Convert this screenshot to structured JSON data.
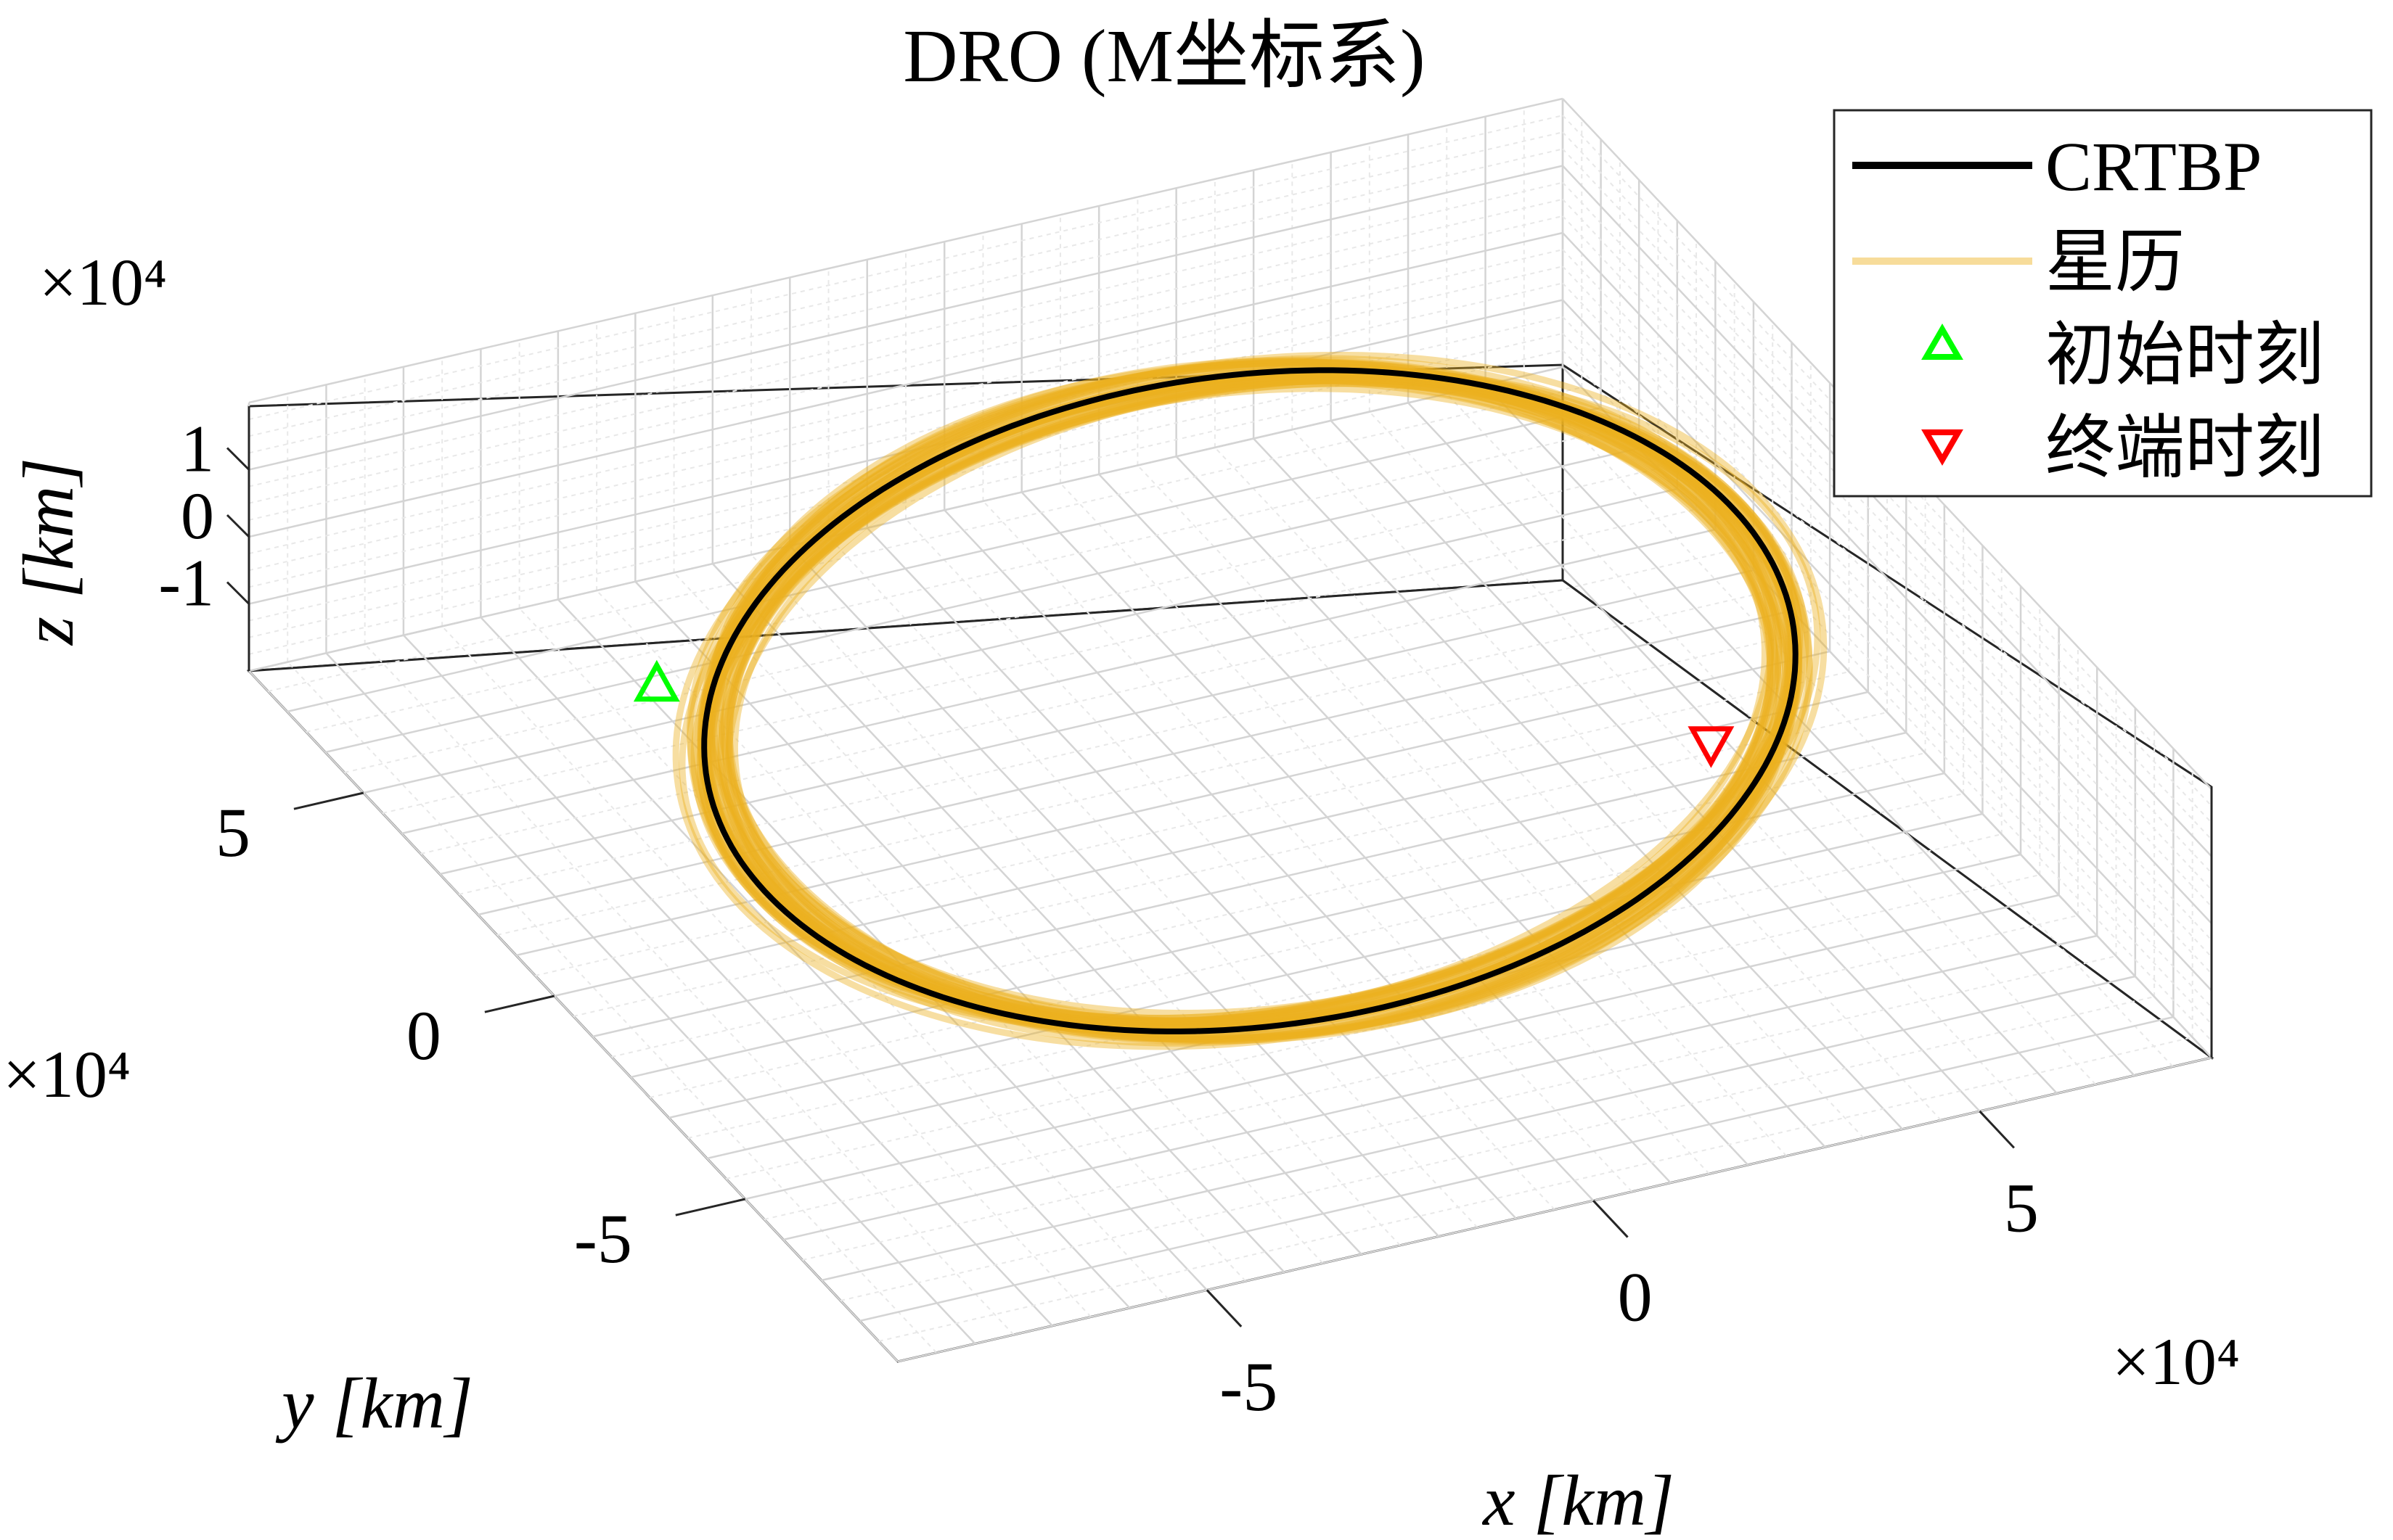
{
  "chart_data": {
    "type": "line",
    "projection": "3d",
    "title": "DRO (M坐标系)",
    "xlabel": "x [km]",
    "ylabel": "y [km]",
    "zlabel": "z [km]",
    "x_multiplier": "×10⁴",
    "y_multiplier": "×10⁴",
    "z_multiplier": "×10⁴",
    "x_ticks": [
      "-5",
      "0",
      "5"
    ],
    "y_ticks": [
      "-5",
      "0",
      "5"
    ],
    "z_ticks": [
      "-1",
      "0",
      "1"
    ],
    "xlim": [
      -90000,
      80000
    ],
    "ylim": [
      -90000,
      80000
    ],
    "zlim": [
      -20000,
      20000
    ],
    "grid": true,
    "legend_position": "top-right",
    "legend": [
      {
        "name": "CRTBP",
        "kind": "line",
        "color": "#000000"
      },
      {
        "name": "星历",
        "kind": "line",
        "color": "#EDB120"
      },
      {
        "name": "初始时刻",
        "kind": "marker-up",
        "color": "#00FF00"
      },
      {
        "name": "终端时刻",
        "kind": "marker-down",
        "color": "#FF0000"
      }
    ],
    "series": [
      {
        "name": "CRTBP",
        "color": "#000000",
        "orbit": {
          "center_x": 0,
          "center_y": 0,
          "semi_axis_x": 61000,
          "semi_axis_y": 72000,
          "z_amplitude": 15000,
          "z_phase_deg": 0
        }
      },
      {
        "name": "星历",
        "color": "#EDB120",
        "revolutions": 40,
        "orbit": {
          "center_x": 0,
          "center_y": 0,
          "semi_axis_x": 61000,
          "semi_axis_y": 72000,
          "z_amplitude": 15000,
          "semi_axis_spread": 8000,
          "z_spread": 4000
        }
      }
    ],
    "markers": [
      {
        "name": "初始时刻",
        "x": -56000,
        "y": 42000,
        "z": -8000,
        "shape": "triangle-up",
        "color": "#00FF00"
      },
      {
        "name": "终端时刻",
        "x": 34000,
        "y": -52000,
        "z": 16000,
        "shape": "triangle-down",
        "color": "#FF0000"
      }
    ]
  }
}
